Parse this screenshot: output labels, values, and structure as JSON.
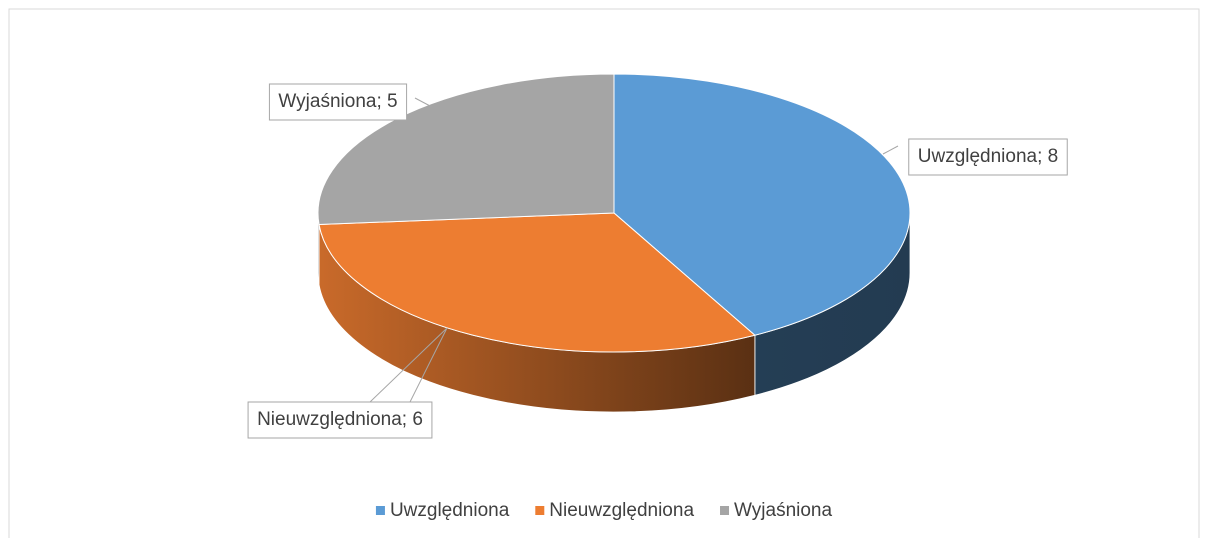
{
  "chart_data": {
    "type": "pie3d",
    "categories": [
      "Uwzględniona",
      "Nieuwzględniona",
      "Wyjaśniona"
    ],
    "values": [
      8,
      6,
      5
    ],
    "value_labels": [
      "Uwzględniona; 8",
      "Nieuwzględniona; 6",
      "Wyjaśniona; 5"
    ],
    "colors": [
      "#5b9bd5",
      "#ed7d31",
      "#a5a5a5"
    ],
    "legend": "bottom"
  }
}
